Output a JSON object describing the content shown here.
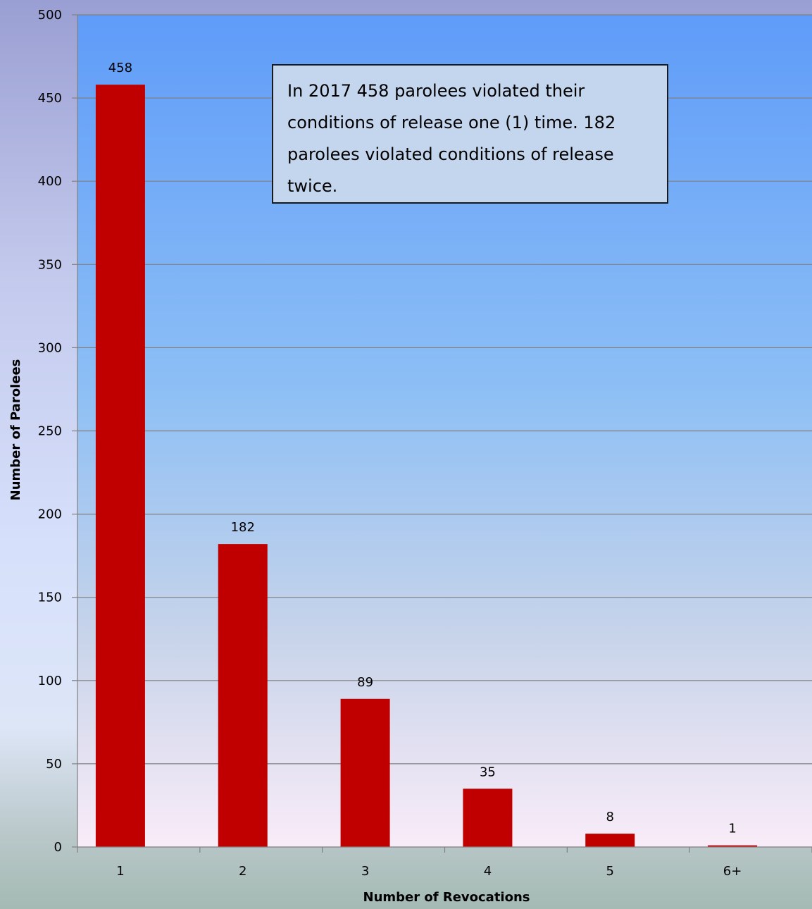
{
  "chart_data": {
    "type": "bar",
    "categories": [
      "1",
      "2",
      "3",
      "4",
      "5",
      "6+"
    ],
    "values": [
      458,
      182,
      89,
      35,
      8,
      1
    ],
    "xlabel": "Number of Revocations",
    "ylabel": "Number of Parolees",
    "ylim": [
      0,
      500
    ],
    "yticks": [
      0,
      50,
      100,
      150,
      200,
      250,
      300,
      350,
      400,
      450,
      500
    ],
    "grid": true,
    "bar_color": "#c00000",
    "plot_background": [
      "#5f9cf9",
      "#f9ecf8"
    ],
    "annotation": "In 2017 458 parolees violated their conditions of release one (1) time. 182 parolees violated conditions of release twice."
  }
}
